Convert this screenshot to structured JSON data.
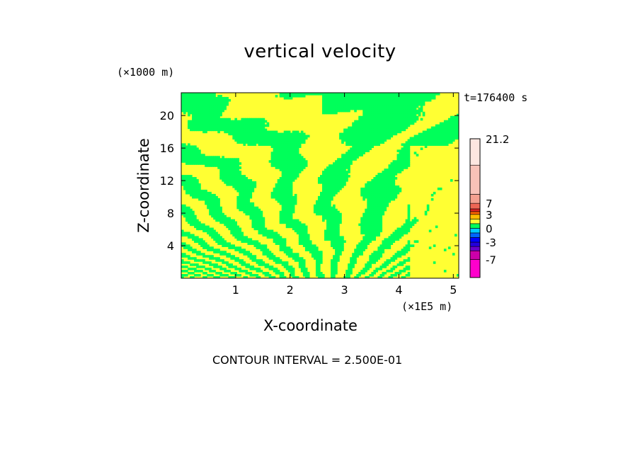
{
  "chart_data": {
    "type": "heatmap",
    "title": "vertical velocity",
    "xlabel": "X-coordinate",
    "ylabel": "Z-coordinate",
    "x_unit": "(×1E5 m)",
    "z_unit": "(×1000 m)",
    "time_label": "t=176400 s",
    "contour_interval": "CONTOUR INTERVAL = 2.500E-01",
    "xlim": [
      0,
      5.1
    ],
    "ylim": [
      0,
      22.8
    ],
    "x_ticks": [
      1,
      2,
      3,
      4,
      5
    ],
    "y_ticks": [
      4,
      8,
      12,
      16,
      20
    ],
    "colors": {
      "positive_small": "#ffff33",
      "near_zero": "#00ff5a"
    },
    "colorbar": {
      "labels": [
        "21.2",
        "7",
        "3",
        "0",
        "-3",
        "-7"
      ],
      "label_values": [
        21.2,
        7,
        3,
        0,
        -3,
        -7
      ],
      "range": [
        -10,
        21.2
      ],
      "segments": [
        {
          "from": -10,
          "to": -7,
          "color": "#ff00cc"
        },
        {
          "from": -7,
          "to": -5,
          "color": "#cc00aa"
        },
        {
          "from": -5,
          "to": -4,
          "color": "#6600cc"
        },
        {
          "from": -4,
          "to": -3,
          "color": "#2200dd"
        },
        {
          "from": -3,
          "to": -2,
          "color": "#0000ff"
        },
        {
          "from": -2,
          "to": -1,
          "color": "#0066ff"
        },
        {
          "from": -1,
          "to": 0,
          "color": "#00ccff"
        },
        {
          "from": 0,
          "to": 1,
          "color": "#00ff5a"
        },
        {
          "from": 1,
          "to": 2,
          "color": "#ffff33"
        },
        {
          "from": 2,
          "to": 3,
          "color": "#ffbb00"
        },
        {
          "from": 3,
          "to": 4,
          "color": "#ff6600"
        },
        {
          "from": 4,
          "to": 5,
          "color": "#dd2222"
        },
        {
          "from": 5,
          "to": 7,
          "color": "#ee6655"
        },
        {
          "from": 7,
          "to": 10,
          "color": "#f4a090"
        },
        {
          "from": 10,
          "to": 14,
          "color": "#f8c2b8"
        },
        {
          "from": 14,
          "to": 21.2,
          "color": "#fde6e0"
        }
      ]
    }
  }
}
